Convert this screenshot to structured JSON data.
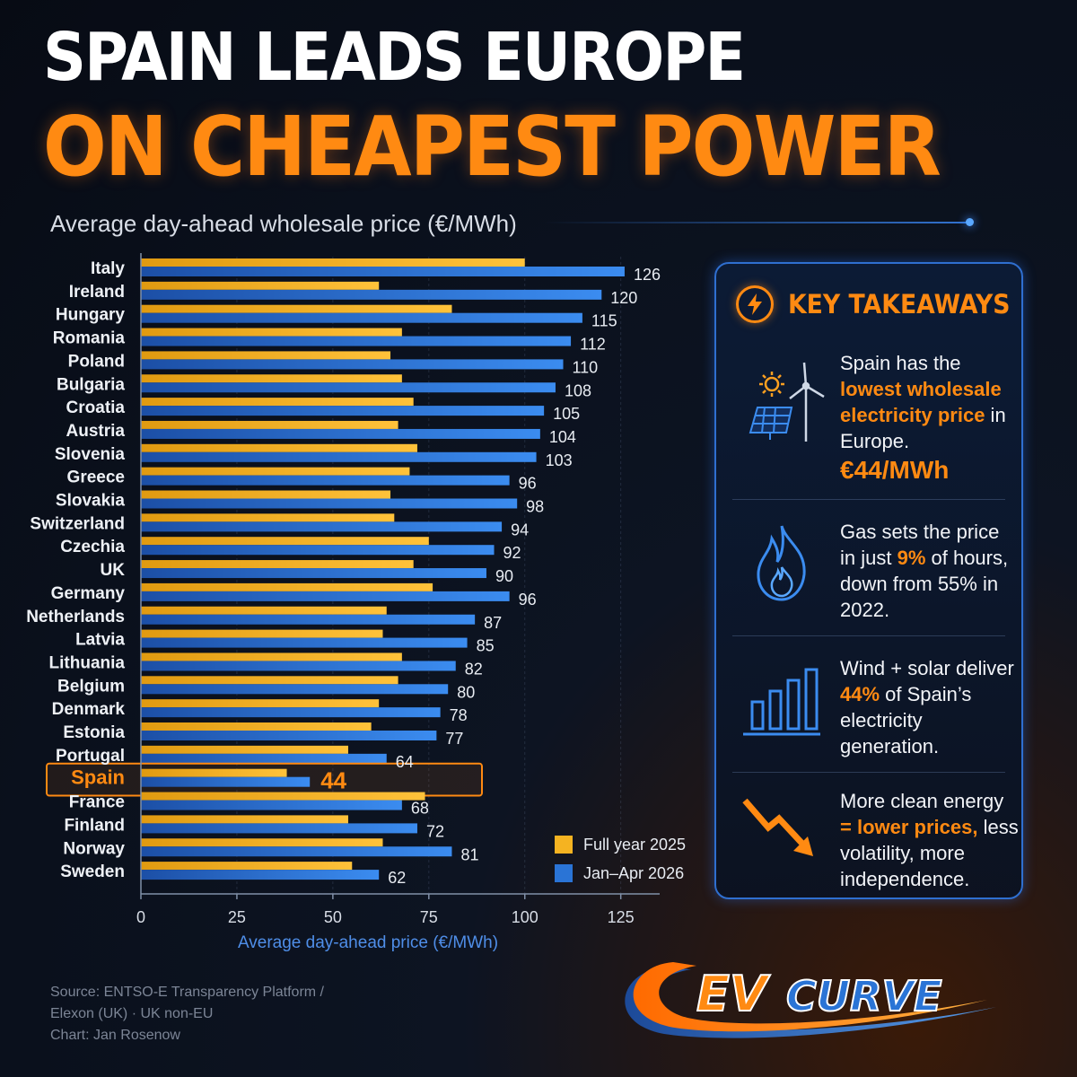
{
  "header": {
    "title_line1": "SPAIN LEADS EUROPE",
    "title_line2": "ON CHEAPEST POWER",
    "subtitle": "Average day-ahead wholesale price (€/MWh)"
  },
  "chart_data": {
    "type": "bar",
    "orientation": "horizontal",
    "xlabel": "Average day-ahead price (€/MWh)",
    "xlim": [
      0,
      137
    ],
    "xticks": [
      0,
      25,
      50,
      75,
      100,
      125
    ],
    "categories": [
      "Italy",
      "Ireland",
      "Hungary",
      "Romania",
      "Poland",
      "Bulgaria",
      "Croatia",
      "Austria",
      "Slovenia",
      "Greece",
      "Slovakia",
      "Switzerland",
      "Czechia",
      "UK",
      "Germany",
      "Netherlands",
      "Latvia",
      "Lithuania",
      "Belgium",
      "Denmark",
      "Estonia",
      "Portugal",
      "Spain",
      "France",
      "Finland",
      "Norway",
      "Sweden"
    ],
    "highlight": "Spain",
    "series": [
      {
        "name": "Full year 2025",
        "color": "#f5b321",
        "values": [
          100,
          62,
          81,
          68,
          65,
          68,
          71,
          67,
          72,
          70,
          65,
          66,
          75,
          71,
          76,
          64,
          63,
          68,
          67,
          62,
          60,
          54,
          38,
          74,
          54,
          63,
          55
        ]
      },
      {
        "name": "Jan–Apr 2026",
        "color": "#2a74d6",
        "values": [
          126,
          120,
          115,
          112,
          110,
          108,
          105,
          104,
          103,
          96,
          98,
          94,
          92,
          90,
          96,
          87,
          85,
          82,
          80,
          78,
          77,
          64,
          44,
          68,
          72,
          81,
          62
        ]
      }
    ],
    "value_labels": [
      "126",
      "120",
      "115",
      "112",
      "110",
      "108",
      "105",
      "104",
      "103",
      "96",
      "98",
      "94",
      "92",
      "90",
      "96",
      "87",
      "85",
      "82",
      "80",
      "78",
      "77",
      "64",
      "44",
      "68",
      "72",
      "81",
      "62"
    ],
    "legend_position": "bottom-right"
  },
  "takeaways": {
    "title": "KEY TAKEAWAYS",
    "items": [
      {
        "icon": "solar-wind-icon",
        "text_before": "Spain has the ",
        "highlight": "lowest wholesale electricity price",
        "text_after": " in Europe.",
        "big": "€44/MWh"
      },
      {
        "icon": "flame-icon",
        "text_before": "Gas sets the price in just ",
        "highlight": "9%",
        "text_after": " of hours, down from 55% in 2022."
      },
      {
        "icon": "bar-growth-icon",
        "text_before": "Wind + solar deliver ",
        "highlight": "44%",
        "text_after": " of Spain’s electricity generation."
      },
      {
        "icon": "trend-down-arrow-icon",
        "text_before": "More clean energy ",
        "highlight": "= lower prices,",
        "text_after": " less volatility, more independence."
      }
    ]
  },
  "source": {
    "line1": "Source: ENTSO-E Transparency Platform /",
    "line2": "Elexon (UK) · UK non-EU",
    "line3": "Chart: Jan Rosenow"
  },
  "logo": {
    "left": "EV",
    "right": "CURVE"
  },
  "colors": {
    "accent": "#ff8a12",
    "blue": "#2a74d6",
    "yellow": "#f5b321",
    "background": "#0a101c"
  }
}
